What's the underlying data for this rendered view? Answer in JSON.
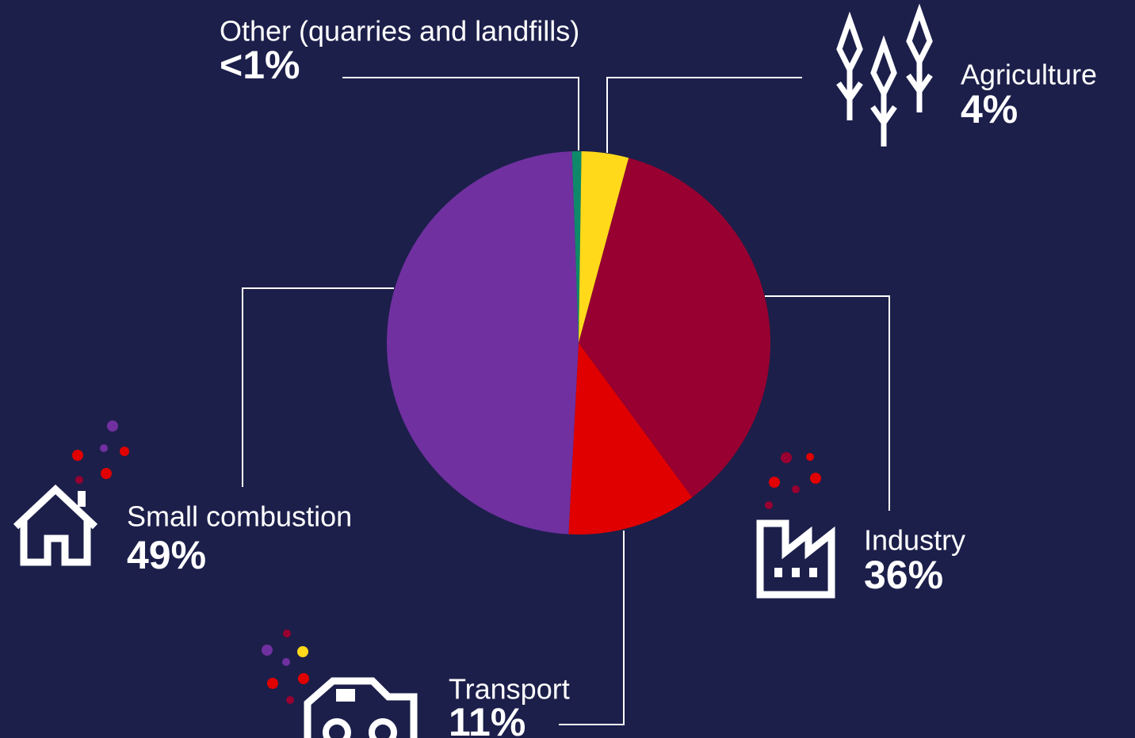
{
  "chart_data": {
    "type": "pie",
    "categories": [
      "Other (quarries and landfills)",
      "Agriculture",
      "Industry",
      "Transport",
      "Small combustion"
    ],
    "values": [
      0.8,
      4,
      36,
      11,
      49
    ],
    "value_labels": [
      "<1%",
      "4%",
      "36%",
      "11%",
      "49%"
    ],
    "colors": [
      "#0e8a6a",
      "#ffd91a",
      "#970030",
      "#e00000",
      "#7030a0"
    ]
  }
}
